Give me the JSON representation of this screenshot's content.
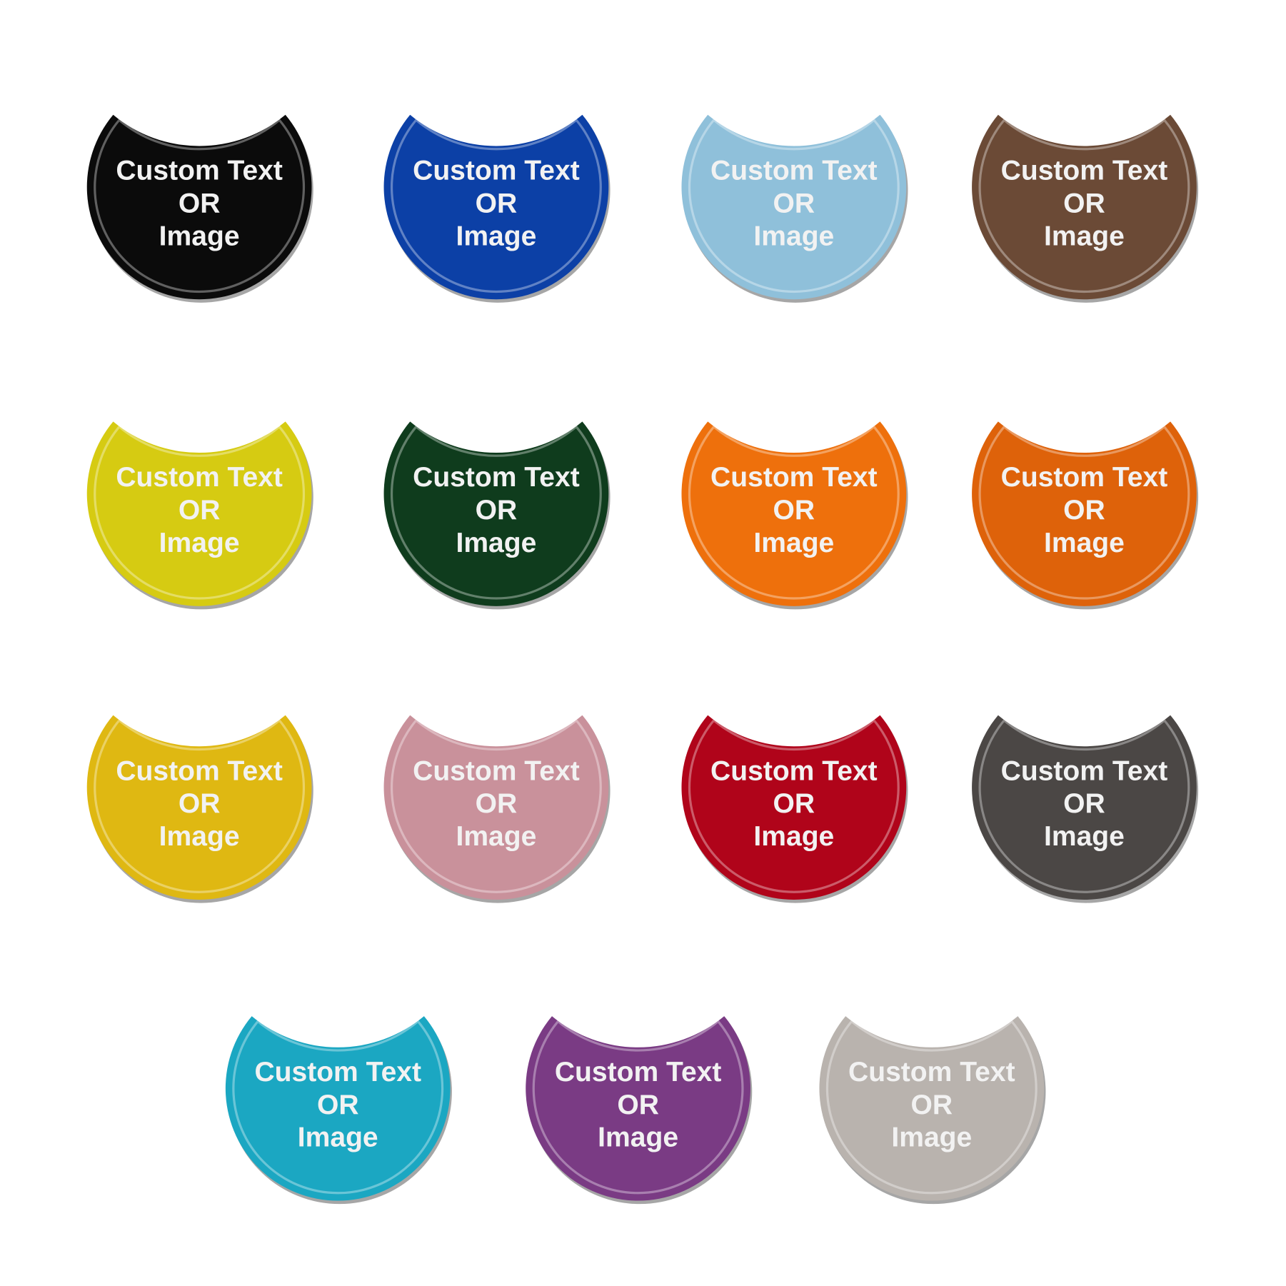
{
  "items": [
    {
      "color": "#0b0b0b",
      "lines": [
        "Custom Text",
        "OR",
        "Image"
      ]
    },
    {
      "color": "#0c40a6",
      "lines": [
        "Custom Text",
        "OR",
        "Image"
      ]
    },
    {
      "color": "#8fc0da",
      "lines": [
        "Custom Text",
        "OR",
        "Image"
      ]
    },
    {
      "color": "#6b4a36",
      "lines": [
        "Custom Text",
        "OR",
        "Image"
      ]
    },
    {
      "color": "#d6cb12",
      "lines": [
        "Custom Text",
        "OR",
        "Image"
      ]
    },
    {
      "color": "#0f3c1d",
      "lines": [
        "Custom Text",
        "OR",
        "Image"
      ]
    },
    {
      "color": "#ee700c",
      "lines": [
        "Custom Text",
        "OR",
        "Image"
      ]
    },
    {
      "color": "#de620a",
      "lines": [
        "Custom Text",
        "OR",
        "Image"
      ]
    },
    {
      "color": "#dfb812",
      "lines": [
        "Custom Text",
        "OR",
        "Image"
      ]
    },
    {
      "color": "#c9919b",
      "lines": [
        "Custom Text",
        "OR",
        "Image"
      ]
    },
    {
      "color": "#b0041a",
      "lines": [
        "Custom Text",
        "OR",
        "Image"
      ]
    },
    {
      "color": "#4b4745",
      "lines": [
        "Custom Text",
        "OR",
        "Image"
      ]
    },
    {
      "color": "#1ba7c2",
      "lines": [
        "Custom Text",
        "OR",
        "Image"
      ]
    },
    {
      "color": "#7a3b84",
      "lines": [
        "Custom Text",
        "OR",
        "Image"
      ]
    },
    {
      "color": "#b9b3ae",
      "lines": [
        "Custom Text",
        "OR",
        "Image"
      ]
    }
  ]
}
